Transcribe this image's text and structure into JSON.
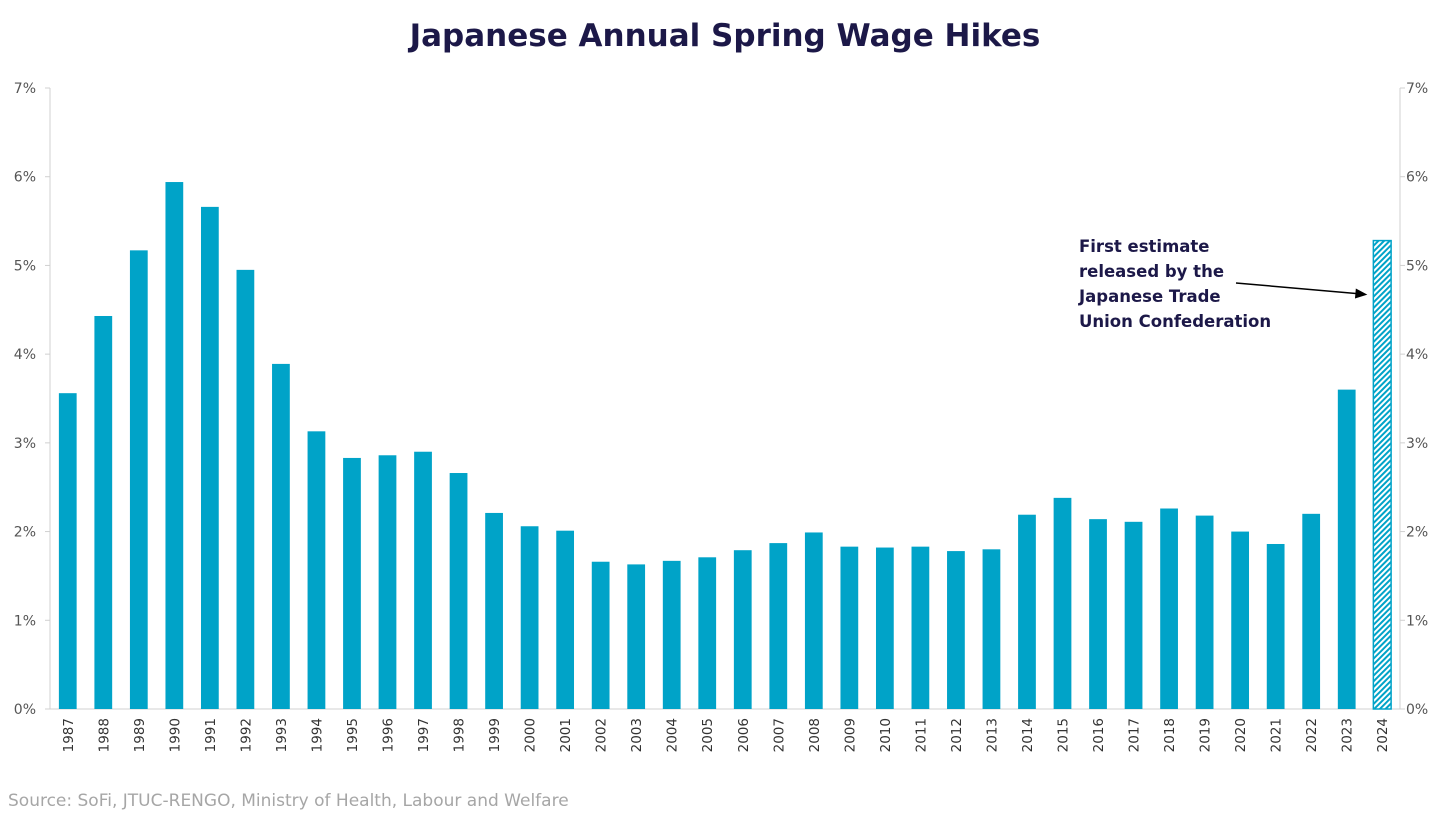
{
  "chart_data": {
    "type": "bar",
    "title": "Japanese Annual Spring Wage Hikes",
    "xlabel": "",
    "ylabel": "",
    "ylim": [
      0,
      7
    ],
    "y_ticks": [
      "0%",
      "1%",
      "2%",
      "3%",
      "4%",
      "5%",
      "6%",
      "7%"
    ],
    "y_tick_values": [
      0,
      1,
      2,
      3,
      4,
      5,
      6,
      7
    ],
    "categories": [
      "1987",
      "1988",
      "1989",
      "1990",
      "1991",
      "1992",
      "1993",
      "1994",
      "1995",
      "1996",
      "1997",
      "1998",
      "1999",
      "2000",
      "2001",
      "2002",
      "2003",
      "2004",
      "2005",
      "2006",
      "2007",
      "2008",
      "2009",
      "2010",
      "2011",
      "2012",
      "2013",
      "2014",
      "2015",
      "2016",
      "2017",
      "2018",
      "2019",
      "2020",
      "2021",
      "2022",
      "2023",
      "2024"
    ],
    "values": [
      3.56,
      4.43,
      5.17,
      5.94,
      5.66,
      4.95,
      3.89,
      3.13,
      2.83,
      2.86,
      2.9,
      2.66,
      2.21,
      2.06,
      2.01,
      1.66,
      1.63,
      1.67,
      1.71,
      1.79,
      1.87,
      1.99,
      1.83,
      1.82,
      1.83,
      1.78,
      1.8,
      2.19,
      2.38,
      2.14,
      2.11,
      2.26,
      2.18,
      2.0,
      1.86,
      2.2,
      3.6,
      5.28
    ],
    "estimate_categories": [
      "2024"
    ],
    "grid": false,
    "colors": {
      "bar": "#00a3c8",
      "title": "#1c1848",
      "axis": "#d0d0d0"
    },
    "annotation": {
      "lines": [
        "First estimate",
        "released by the",
        "Japanese Trade",
        "Union Confederation"
      ],
      "target": "2024"
    },
    "source": "Source: SoFi, JTUC-RENGO, Ministry of Health, Labour and Welfare"
  }
}
